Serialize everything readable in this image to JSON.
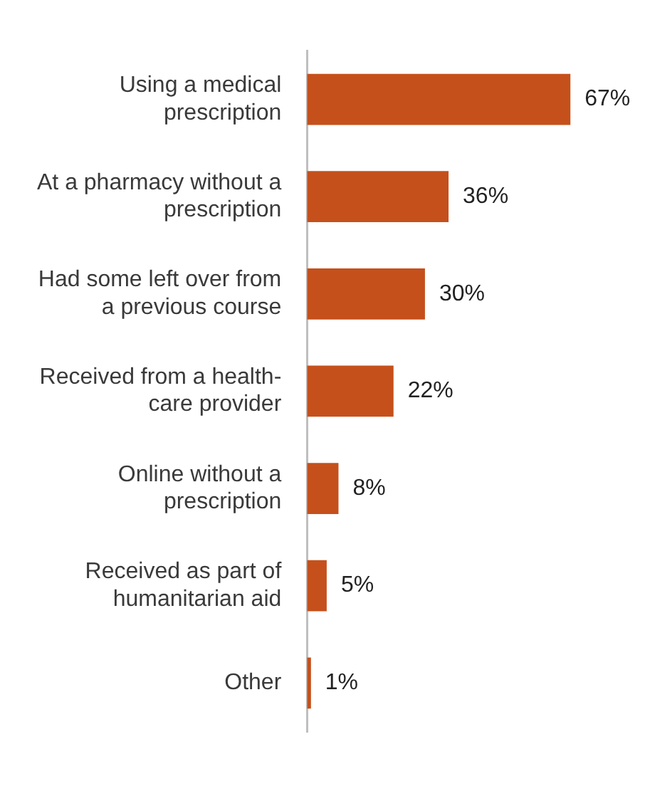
{
  "chart_data": {
    "type": "bar",
    "orientation": "horizontal",
    "categories": [
      "Using a medical prescription",
      "At a pharmacy without a prescription",
      "Had some left over from a previous course",
      "Received from a health-care provider",
      "Online without a prescription",
      "Received as part of humanitarian aid",
      "Other"
    ],
    "values": [
      67,
      36,
      30,
      22,
      8,
      5,
      1
    ],
    "value_labels": [
      "67%",
      "36%",
      "30%",
      "22%",
      "8%",
      "5%",
      "1%"
    ],
    "color": "#c5501b",
    "grid": false,
    "legend": false
  }
}
